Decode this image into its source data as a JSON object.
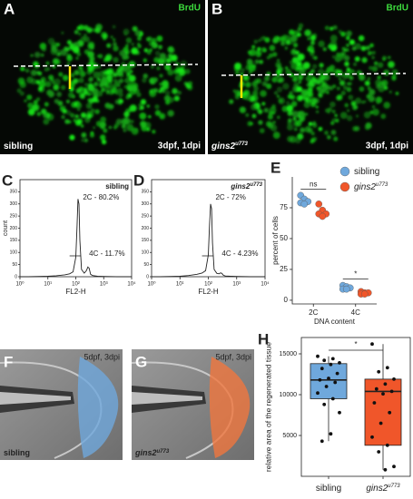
{
  "panels": {
    "A": {
      "letter": "A",
      "stain": "BrdU",
      "genotype": "sibling",
      "stage": "3dpf, 1dpi"
    },
    "B": {
      "letter": "B",
      "stain": "BrdU",
      "genotype": "gins2",
      "superscript": "u773",
      "stage": "3dpf, 1dpi"
    },
    "F": {
      "letter": "F",
      "stage": "5dpf, 3dpi",
      "genotype": "sibling"
    },
    "G": {
      "letter": "G",
      "stage": "5dpf, 3dpi",
      "genotype": "gins2",
      "superscript": "u773"
    }
  },
  "chart_data": [
    {
      "type": "histogram-line",
      "letter": "C",
      "genotype": "sibling",
      "xlabel": "FL2-H",
      "ylabel": "count",
      "log_x": true,
      "color": "#222222",
      "x": [
        1,
        2,
        5,
        10,
        20,
        40,
        60,
        80,
        100,
        110,
        120,
        130,
        140,
        160,
        200,
        240,
        270,
        300,
        340,
        400,
        600,
        1000,
        3000,
        10000
      ],
      "values": [
        0,
        0,
        1,
        2,
        4,
        8,
        12,
        20,
        80,
        200,
        320,
        300,
        150,
        30,
        15,
        25,
        40,
        35,
        10,
        5,
        2,
        1,
        0,
        0
      ],
      "annotations": [
        "2C - 80.2%",
        "4C - 11.7%"
      ],
      "xlim": [
        1,
        10000
      ],
      "xticks": [
        {
          "value": 1,
          "label": "10⁰"
        },
        {
          "value": 10,
          "label": "10¹"
        },
        {
          "value": 100,
          "label": "10²"
        },
        {
          "value": 1000,
          "label": "10³"
        },
        {
          "value": 10000,
          "label": "10⁴"
        }
      ],
      "ylim": [
        0,
        400
      ],
      "yticks": [
        0,
        50,
        100,
        150,
        200,
        250,
        300,
        350
      ]
    },
    {
      "type": "histogram-line",
      "letter": "D",
      "genotype": "gins2",
      "superscript": "u773",
      "xlabel": "FL2-H",
      "log_x": true,
      "color": "#222222",
      "x": [
        1,
        2,
        5,
        10,
        20,
        40,
        60,
        80,
        100,
        110,
        120,
        130,
        140,
        160,
        200,
        240,
        270,
        300,
        340,
        400,
        600,
        1000,
        3000,
        10000
      ],
      "values": [
        0,
        0,
        1,
        2,
        5,
        10,
        15,
        25,
        90,
        210,
        300,
        280,
        140,
        30,
        14,
        12,
        16,
        14,
        6,
        3,
        2,
        1,
        0,
        0
      ],
      "annotations": [
        "2C - 72%",
        "4C - 4.23%"
      ],
      "xlim": [
        1,
        10000
      ],
      "xticks": [
        {
          "value": 1,
          "label": "10⁰"
        },
        {
          "value": 10,
          "label": "10¹"
        },
        {
          "value": 100,
          "label": "10²"
        },
        {
          "value": 1000,
          "label": "10³"
        },
        {
          "value": 10000,
          "label": "10⁴"
        }
      ],
      "ylim": [
        0,
        400
      ],
      "yticks": [
        0,
        50,
        100,
        150,
        200,
        250,
        300,
        350
      ]
    },
    {
      "type": "dot",
      "letter": "E",
      "xlabel": "DNA content",
      "ylabel": "percent of cells",
      "categories": [
        "2C",
        "4C"
      ],
      "series": [
        {
          "name": "sibling",
          "color": "#6fa8dc",
          "values": [
            [
              85,
              82,
              80,
              79,
              78
            ],
            [
              12,
              11,
              10,
              9,
              9
            ]
          ]
        },
        {
          "name": "gins2",
          "superscript": "u773",
          "color": "#f0562a",
          "values": [
            [
              78,
              73,
              70,
              70,
              68
            ],
            [
              7,
              6,
              6,
              5,
              5
            ]
          ]
        }
      ],
      "annotations": [
        "ns",
        "*"
      ],
      "ylim": [
        -3,
        100
      ],
      "yticks": [
        0,
        25,
        50,
        75
      ]
    },
    {
      "type": "box",
      "letter": "H",
      "ylabel": "relative area of the regenerated tissue",
      "series": [
        {
          "name": "sibling",
          "color": "#6fa8dc",
          "box": {
            "min": 4300,
            "q1": 9500,
            "median": 11800,
            "q3": 13800,
            "max": 14700
          },
          "points": [
            14700,
            14400,
            14200,
            13900,
            13700,
            13200,
            12600,
            12000,
            11800,
            11500,
            11000,
            10200,
            9500,
            8800,
            7800,
            5200,
            4300
          ]
        },
        {
          "name": "gins2",
          "superscript": "u773",
          "color": "#f0562a",
          "box": {
            "min": 800,
            "q1": 3800,
            "median": 10400,
            "q3": 11900,
            "max": 16200
          },
          "points": [
            16200,
            13300,
            12800,
            11900,
            11300,
            10700,
            10400,
            10100,
            9000,
            7800,
            6500,
            4800,
            3800,
            3000,
            1200,
            800
          ]
        }
      ],
      "annotations": [
        "*"
      ],
      "ylim": [
        0,
        17000
      ],
      "yticks": [
        5000,
        10000,
        15000
      ]
    }
  ]
}
